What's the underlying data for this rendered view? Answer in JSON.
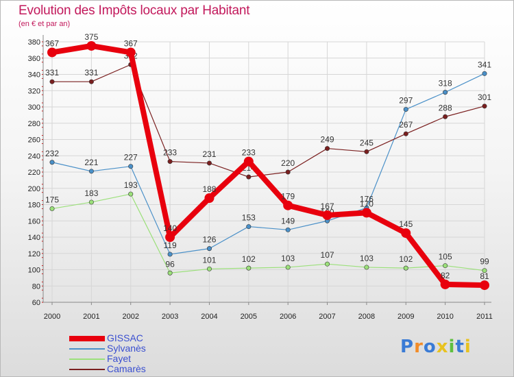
{
  "title": "Evolution des Impôts locaux par Habitant",
  "subtitle": "(en € et par an)",
  "logo": {
    "text": "Proxiti",
    "letter_colors": [
      "#3a7bd5",
      "#f28c28",
      "#3a7bd5",
      "#e8c220",
      "#5fbf3f",
      "#3a7bd5",
      "#e8c220"
    ]
  },
  "chart_data": {
    "type": "line",
    "x": [
      "2000",
      "2001",
      "2002",
      "2003",
      "2004",
      "2005",
      "2006",
      "2007",
      "2008",
      "2009",
      "2010",
      "2011"
    ],
    "ylim": [
      60,
      380
    ],
    "yticks": [
      "60",
      "80",
      "100",
      "120",
      "140",
      "160",
      "180",
      "200",
      "220",
      "240",
      "260",
      "280",
      "300",
      "320",
      "340",
      "360",
      "380"
    ],
    "grid": true,
    "legend_position": "bottom-left",
    "series": [
      {
        "name": "GISSAC",
        "color": "#e8000d",
        "emphasis": true,
        "values": [
          367,
          375,
          367,
          140,
          188,
          233,
          179,
          167,
          170,
          145,
          82,
          81
        ]
      },
      {
        "name": "Sylvanès",
        "color": "#4a90c8",
        "values": [
          232,
          221,
          227,
          119,
          126,
          153,
          149,
          160,
          176,
          297,
          318,
          341
        ]
      },
      {
        "name": "Fayet",
        "color": "#9be07a",
        "values": [
          175,
          183,
          193,
          96,
          101,
          102,
          103,
          107,
          103,
          102,
          105,
          99
        ]
      },
      {
        "name": "Camarès",
        "color": "#7a1f1f",
        "values": [
          331,
          331,
          352,
          233,
          231,
          214,
          220,
          249,
          245,
          267,
          288,
          301
        ]
      }
    ]
  }
}
